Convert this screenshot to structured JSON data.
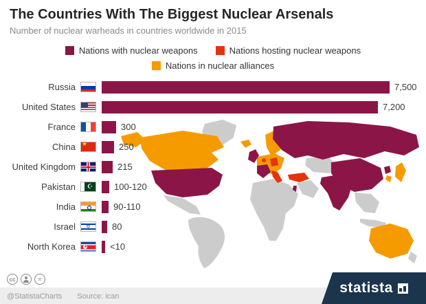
{
  "colors": {
    "weapons": "#8c1548",
    "hosting": "#e5340b",
    "alliances": "#f59b00",
    "map_other": "#cccccc",
    "navy": "#1b354d"
  },
  "header": {
    "title": "The Countries With The Biggest Nuclear Arsenals",
    "subtitle": "Number of nuclear warheads in countries worldwide in 2015"
  },
  "legend": [
    {
      "label": "Nations with nuclear weapons",
      "color_key": "weapons"
    },
    {
      "label": "Nations hosting nuclear weapons",
      "color_key": "hosting"
    },
    {
      "label": "Nations in nuclear alliances",
      "color_key": "alliances"
    }
  ],
  "chart_data": {
    "type": "bar",
    "orientation": "horizontal",
    "title": "The Countries With The Biggest Nuclear Arsenals",
    "subtitle": "Number of nuclear warheads in countries worldwide in 2015",
    "categories": [
      "Russia",
      "United States",
      "France",
      "China",
      "United Kingdom",
      "Pakistan",
      "India",
      "Israel",
      "North Korea"
    ],
    "values": [
      7500,
      7200,
      300,
      250,
      215,
      120,
      110,
      80,
      10
    ],
    "value_labels": [
      "7,500",
      "7,200",
      "300",
      "250",
      "215",
      "100-120",
      "90-110",
      "80",
      "<10"
    ],
    "flags": [
      "ru",
      "us",
      "fr",
      "cn",
      "gb",
      "pk",
      "in",
      "il",
      "kp"
    ],
    "xlim": [
      0,
      7500
    ],
    "bar_color_key": "weapons",
    "legend_entries": [
      "Nations with nuclear weapons",
      "Nations hosting nuclear weapons",
      "Nations in nuclear alliances"
    ],
    "map_note": "world map shaded by nuclear status: weapons (dark red), hosting (red), alliances (orange), other (gray)"
  },
  "footer": {
    "credit": "@StatistaCharts",
    "source": "Source: ican",
    "brand": "statista",
    "cc_glyph_1": "cc",
    "cc_glyph_3": "="
  }
}
